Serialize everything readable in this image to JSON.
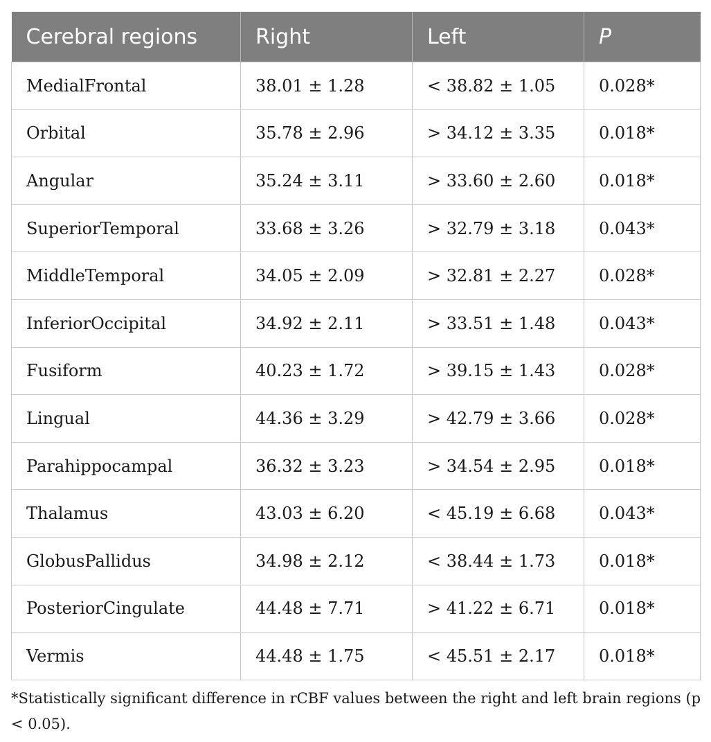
{
  "table": {
    "headers": [
      "Cerebral regions",
      "Right",
      "Left",
      "P"
    ],
    "rows": [
      {
        "region": "MedialFrontal",
        "right": "38.01 ± 1.28",
        "left": "< 38.82 ± 1.05",
        "p": "0.028*"
      },
      {
        "region": "Orbital",
        "right": "35.78 ± 2.96",
        "left": "> 34.12 ± 3.35",
        "p": "0.018*"
      },
      {
        "region": "Angular",
        "right": "35.24 ± 3.11",
        "left": "> 33.60 ± 2.60",
        "p": "0.018*"
      },
      {
        "region": "SuperiorTemporal",
        "right": "33.68 ± 3.26",
        "left": "> 32.79 ± 3.18",
        "p": "0.043*"
      },
      {
        "region": "MiddleTemporal",
        "right": "34.05 ± 2.09",
        "left": "> 32.81 ± 2.27",
        "p": "0.028*"
      },
      {
        "region": "InferiorOccipital",
        "right": "34.92 ± 2.11",
        "left": "> 33.51 ± 1.48",
        "p": "0.043*"
      },
      {
        "region": "Fusiform",
        "right": "40.23 ± 1.72",
        "left": "> 39.15 ± 1.43",
        "p": "0.028*"
      },
      {
        "region": "Lingual",
        "right": "44.36 ± 3.29",
        "left": "> 42.79 ± 3.66",
        "p": "0.028*"
      },
      {
        "region": "Parahippocampal",
        "right": "36.32 ± 3.23",
        "left": "> 34.54 ± 2.95",
        "p": "0.018*"
      },
      {
        "region": "Thalamus",
        "right": "43.03 ± 6.20",
        "left": "< 45.19 ± 6.68",
        "p": "0.043*"
      },
      {
        "region": "GlobusPallidus",
        "right": "34.98 ± 2.12",
        "left": "< 38.44 ± 1.73",
        "p": "0.018*"
      },
      {
        "region": "PosteriorCingulate",
        "right": "44.48 ± 7.71",
        "left": "> 41.22 ± 6.71",
        "p": "0.018*"
      },
      {
        "region": "Vermis",
        "right": "44.48 ± 1.75",
        "left": "< 45.51 ± 2.17",
        "p": "0.018*"
      }
    ]
  },
  "footnote": "*Statistically significant difference in rCBF values between the right and left brain regions (p < 0.05).",
  "colors": {
    "header_bg": "#7f7f7f",
    "header_text": "#ffffff",
    "grid": "#c8c8c8"
  }
}
